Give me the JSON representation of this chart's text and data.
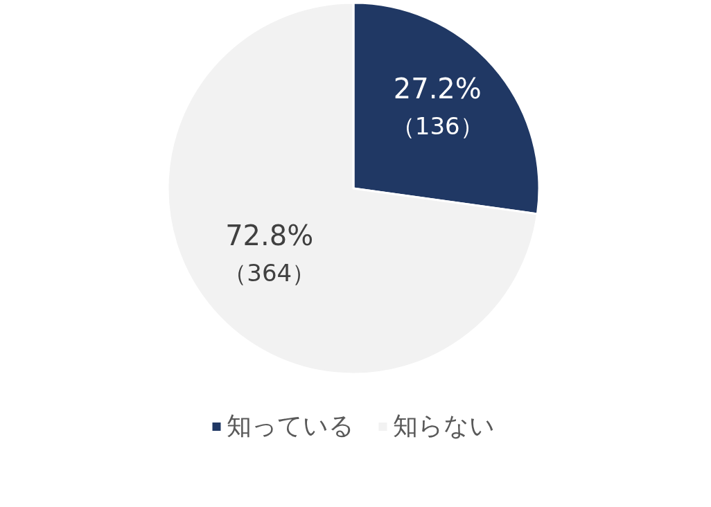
{
  "chart_data": {
    "type": "pie",
    "categories": [
      "知っている",
      "知らない"
    ],
    "values": [
      136,
      364
    ],
    "colors": [
      "#203864",
      "#f2f2f2"
    ],
    "value_labels": [
      "27.2%\n（136）",
      "72.8%\n（364）"
    ],
    "legend": "bottom"
  }
}
